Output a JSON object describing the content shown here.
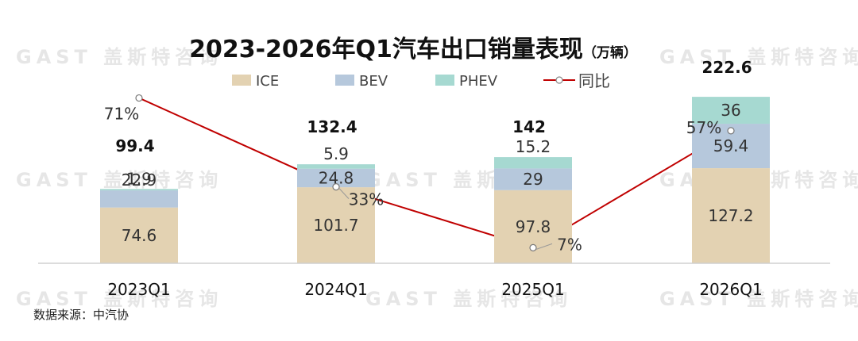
{
  "watermark": "GAST 盖斯特咨询",
  "source": "数据来源：中汽协",
  "chart_data": {
    "type": "bar",
    "stacked": true,
    "title": "2023-2026年Q1汽车出口销量表现",
    "unit": "（万辆）",
    "categories": [
      "2023Q1",
      "2024Q1",
      "2025Q1",
      "2026Q1"
    ],
    "series": [
      {
        "name": "ICE",
        "color": "#e3d2b2",
        "values": [
          74.6,
          101.7,
          97.8,
          127.2
        ]
      },
      {
        "name": "BEV",
        "color": "#b6c8dc",
        "values": [
          22.9,
          24.8,
          29,
          59.4
        ]
      },
      {
        "name": "PHEV",
        "color": "#a6d9d1",
        "values": [
          1.9,
          5.9,
          15.2,
          36
        ]
      }
    ],
    "totals": [
      99.4,
      132.4,
      142,
      222.6
    ],
    "line_series": {
      "name": "同比",
      "color": "#c00000",
      "values": [
        71,
        33,
        7,
        57
      ],
      "labels": [
        "71%",
        "33%",
        "7%",
        "57%"
      ]
    },
    "legend_position": "top",
    "grid": false
  }
}
